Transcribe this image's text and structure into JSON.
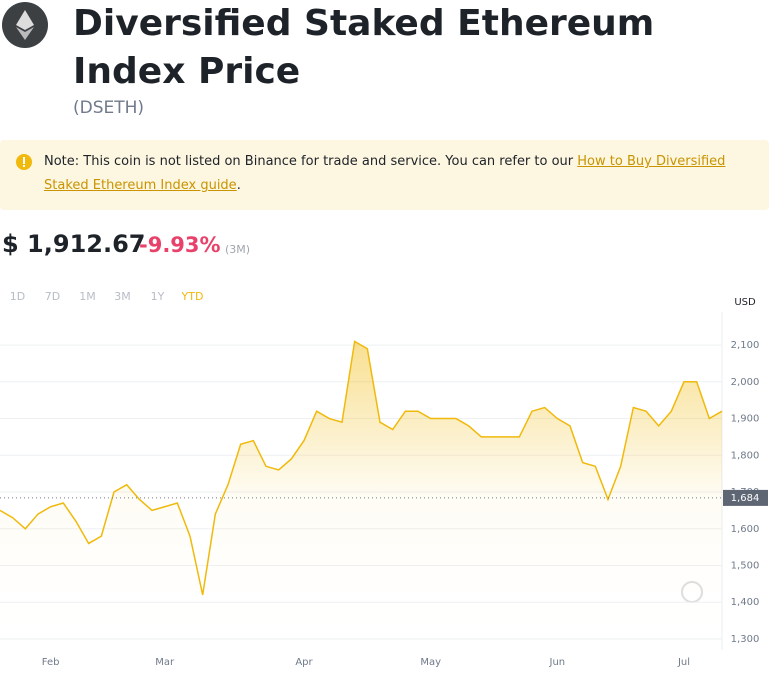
{
  "header": {
    "title": "Diversified Staked Ethereum Index Price",
    "symbol": "(DSETH)"
  },
  "note": {
    "text": "Note: This coin is not listed on Binance for trade and service. You can refer to our ",
    "link": "How to Buy Diversified Staked Ethereum Index guide",
    "end": "."
  },
  "price": {
    "value": "$ 1,912.67",
    "change": "-9.93%",
    "period": "(3M)"
  },
  "ranges": [
    "1D",
    "7D",
    "1M",
    "3M",
    "1Y",
    "YTD"
  ],
  "chart_data": {
    "type": "line",
    "y_label": "USD",
    "categories": [
      null,
      null,
      null,
      null,
      "Feb",
      null,
      null,
      null,
      null,
      null,
      null,
      null,
      null,
      "Mar",
      null,
      null,
      null,
      null,
      null,
      null,
      null,
      null,
      null,
      null,
      "Apr",
      null,
      null,
      null,
      null,
      null,
      null,
      null,
      null,
      null,
      "May",
      null,
      null,
      null,
      null,
      null,
      null,
      null,
      null,
      null,
      "Jun",
      null,
      null,
      null,
      null,
      null,
      null,
      null,
      null,
      null,
      "Jul",
      null,
      null,
      null
    ],
    "series": [
      {
        "name": "DSETH",
        "color": "#f0b90b",
        "values": [
          1650,
          1630,
          1600,
          1640,
          1660,
          1670,
          1620,
          1560,
          1580,
          1700,
          1720,
          1680,
          1650,
          1660,
          1670,
          1580,
          1420,
          1640,
          1720,
          1830,
          1840,
          1770,
          1760,
          1790,
          1840,
          1920,
          1900,
          1890,
          2110,
          2090,
          1890,
          1870,
          1920,
          1920,
          1900,
          1900,
          1900,
          1880,
          1850,
          1850,
          1850,
          1850,
          1920,
          1930,
          1900,
          1880,
          1780,
          1770,
          1680,
          1770,
          1930,
          1920,
          1880,
          1920,
          2000,
          2000,
          1900,
          1920
        ]
      }
    ],
    "ylim": [
      1270,
      2190
    ],
    "yticks": [
      {
        "value": 1300,
        "label": "1,300"
      },
      {
        "value": 1400,
        "label": "1,400"
      },
      {
        "value": 1500,
        "label": "1,500"
      },
      {
        "value": 1600,
        "label": "1,600"
      },
      {
        "value": 1700,
        "label": "1,700"
      },
      {
        "value": 1800,
        "label": "1,800"
      },
      {
        "value": 1900,
        "label": "1,900"
      },
      {
        "value": 2000,
        "label": "2,000"
      },
      {
        "value": 2100,
        "label": "2,100"
      }
    ],
    "reference": {
      "value": 1684,
      "label": "1,684"
    },
    "grid": true
  }
}
